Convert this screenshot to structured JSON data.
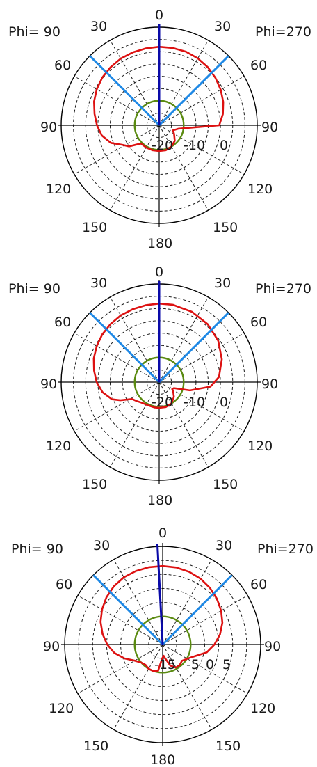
{
  "colors": {
    "axes": "#000000",
    "grid": "#1a1a1a",
    "pattern": "#dd1111",
    "reference": "#5a8a10",
    "beam": "#1e88e5",
    "pointer": "#0a0aa8"
  },
  "chart_data": [
    {
      "type": "polar",
      "phi_left_label": "Phi= 90",
      "phi_right_label": "Phi=270",
      "angle_labels": {
        "top": "0",
        "top_left": "30",
        "top_right": "30",
        "upper_left": "60",
        "upper_right": "60",
        "left": "90",
        "right": "90",
        "lower_left": "120",
        "lower_right": "120",
        "bottom_left": "150",
        "bottom_right": "150",
        "bottom": "180"
      },
      "radial_scale": {
        "min": -30,
        "max": 10,
        "ring_step": 5,
        "tick_labels": [
          "-20",
          "-10",
          "0"
        ]
      },
      "reference_level": -20,
      "beam_lines_deg": [
        -45,
        45
      ],
      "pointer_deg": 0,
      "series": [
        {
          "theta": [
            0,
            10,
            20,
            30,
            40,
            50,
            60,
            70,
            80,
            90,
            100,
            110,
            118,
            125,
            135,
            150,
            165,
            180,
            195,
            210,
            225,
            240,
            250,
            260,
            270,
            280,
            290,
            300,
            310,
            320,
            330,
            340,
            350
          ],
          "r": [
            2,
            1.8,
            1.6,
            1.4,
            0.9,
            0.3,
            -0.6,
            -1.7,
            -3.2,
            -4.6,
            -6.2,
            -9,
            -13,
            -15,
            -19.5,
            -19.5,
            -19.5,
            -19.5,
            -19.5,
            -20,
            -21,
            -23,
            -24,
            -22,
            -5.5,
            -3.6,
            -2.2,
            -1,
            0,
            0.9,
            1.5,
            1.9,
            2
          ]
        }
      ]
    },
    {
      "type": "polar",
      "phi_left_label": "Phi= 90",
      "phi_right_label": "Phi=270",
      "angle_labels": {
        "top": "0",
        "top_left": "30",
        "top_right": "30",
        "upper_left": "60",
        "upper_right": "60",
        "left": "90",
        "right": "90",
        "lower_left": "120",
        "lower_right": "120",
        "bottom_left": "150",
        "bottom_right": "150",
        "bottom": "180"
      },
      "radial_scale": {
        "min": -30,
        "max": 10,
        "ring_step": 5,
        "tick_labels": [
          "-20",
          "-10",
          "0"
        ]
      },
      "reference_level": -20,
      "beam_lines_deg": [
        -45,
        45
      ],
      "pointer_deg": 0,
      "series": [
        {
          "theta": [
            0,
            10,
            20,
            30,
            40,
            50,
            60,
            70,
            80,
            90,
            100,
            110,
            115,
            122,
            130,
            140,
            155,
            170,
            180,
            195,
            210,
            225,
            235,
            242,
            248,
            255,
            265,
            275,
            290,
            305,
            320,
            335,
            350
          ],
          "r": [
            2,
            1.8,
            1.6,
            1.4,
            0.9,
            0.3,
            -0.6,
            -1.6,
            -3,
            -4.5,
            -6.5,
            -9.5,
            -12.5,
            -17,
            -18,
            -19,
            -19.5,
            -19.5,
            -19.5,
            -19.5,
            -20,
            -21.5,
            -23,
            -24,
            -23.5,
            -17,
            -9,
            -5.5,
            -2.8,
            -0.6,
            0.8,
            1.6,
            2
          ]
        }
      ]
    },
    {
      "type": "polar",
      "phi_left_label": "Phi= 90",
      "phi_right_label": "Phi=270",
      "angle_labels": {
        "top": "0",
        "top_left": "30",
        "top_right": "30",
        "upper_left": "60",
        "upper_right": "60",
        "left": "90",
        "right": "90",
        "lower_left": "120",
        "lower_right": "120",
        "bottom_left": "150",
        "bottom_right": "150",
        "bottom": "180"
      },
      "radial_scale": {
        "min": -25,
        "max": 10,
        "ring_step": 5,
        "tick_labels": [
          "-15",
          "-5",
          "0",
          "5"
        ]
      },
      "reference_level": -15,
      "beam_lines_deg": [
        -45,
        45
      ],
      "pointer_deg": 3,
      "series": [
        {
          "theta": [
            0,
            10,
            20,
            30,
            40,
            50,
            60,
            70,
            80,
            90,
            100,
            110,
            120,
            130,
            140,
            150,
            160,
            170,
            178,
            185,
            190,
            200,
            210,
            220,
            230,
            245,
            260,
            270,
            280,
            290,
            300,
            310,
            320,
            330,
            340,
            350
          ],
          "r": [
            3,
            3,
            2.9,
            2.7,
            2.1,
            1.2,
            0,
            -1.4,
            -3.2,
            -5.2,
            -7.5,
            -10.5,
            -13.5,
            -15,
            -15.5,
            -15,
            -15,
            -15.5,
            -20,
            -21,
            -20,
            -17,
            -15.5,
            -15.5,
            -16,
            -14,
            -9,
            -6.5,
            -4.2,
            -2.3,
            -0.9,
            0.3,
            1.3,
            2.1,
            2.6,
            2.9
          ]
        }
      ]
    }
  ]
}
